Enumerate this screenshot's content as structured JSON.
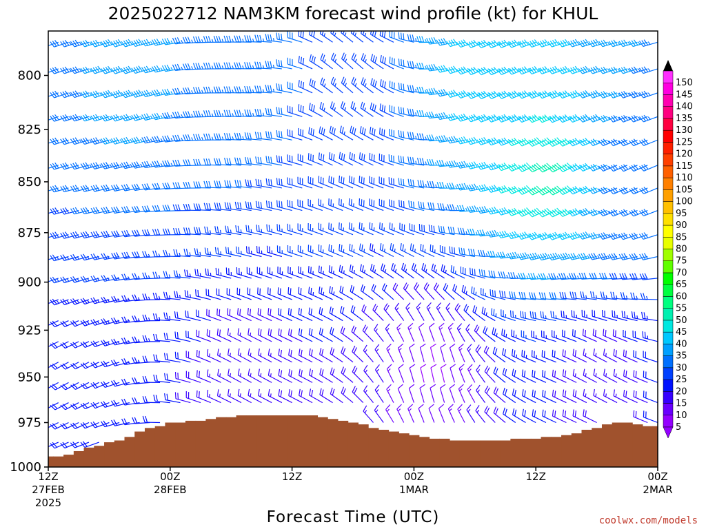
{
  "chart_data": {
    "type": "wind_barb_profile",
    "title": "2025022712 NAM3KM forecast wind profile (kt) for KHUL",
    "xlabel": "Forecast Time (UTC)",
    "ylabel": "",
    "credit": "coolwx.com/models",
    "y_axis": {
      "ticks": [
        800,
        825,
        850,
        875,
        900,
        925,
        950,
        975,
        1000
      ],
      "range_hPa": [
        780,
        1000
      ],
      "inverted": true
    },
    "x_axis": {
      "range_hours": [
        0,
        60
      ],
      "ticks": [
        {
          "hour": 0,
          "line1": "12Z",
          "line2": "27FEB",
          "line3": "2025"
        },
        {
          "hour": 12,
          "line1": "00Z",
          "line2": "28FEB",
          "line3": ""
        },
        {
          "hour": 24,
          "line1": "12Z",
          "line2": "",
          "line3": ""
        },
        {
          "hour": 36,
          "line1": "00Z",
          "line2": "1MAR",
          "line3": ""
        },
        {
          "hour": 48,
          "line1": "12Z",
          "line2": "",
          "line3": ""
        },
        {
          "hour": 60,
          "line1": "00Z",
          "line2": "2MAR",
          "line3": ""
        }
      ]
    },
    "colorbar": {
      "values": [
        5,
        10,
        15,
        20,
        25,
        30,
        35,
        40,
        45,
        50,
        55,
        60,
        65,
        70,
        75,
        80,
        85,
        90,
        95,
        100,
        105,
        110,
        115,
        120,
        125,
        130,
        135,
        140,
        145,
        150
      ],
      "colors": [
        "#9400ff",
        "#6a00ff",
        "#3700ff",
        "#0011ff",
        "#0040ff",
        "#0070ff",
        "#00a0ff",
        "#00c8ff",
        "#00e8e0",
        "#00f0b0",
        "#00ff80",
        "#00ff40",
        "#00ff00",
        "#60ff00",
        "#a0ff00",
        "#e8ff00",
        "#ffff00",
        "#ffe000",
        "#ffc000",
        "#ffa000",
        "#ff8000",
        "#ff6000",
        "#ff4000",
        "#ff2000",
        "#ff0000",
        "#ff0040",
        "#ff0080",
        "#ff00b0",
        "#ff00e0",
        "#ff30ff"
      ]
    },
    "surface_pressure": {
      "hours": [
        0,
        1,
        2,
        3,
        4,
        5,
        6,
        7,
        8,
        9,
        10,
        11,
        12,
        13,
        14,
        15,
        16,
        17,
        18,
        19,
        20,
        21,
        22,
        23,
        24,
        25,
        26,
        27,
        28,
        29,
        30,
        31,
        32,
        33,
        34,
        35,
        36,
        37,
        38,
        39,
        40,
        41,
        42,
        43,
        44,
        45,
        46,
        47,
        48,
        49,
        50,
        51,
        52,
        53,
        54,
        55,
        56,
        57,
        58,
        59,
        60
      ],
      "hPa": [
        994,
        994,
        993,
        991,
        989,
        988,
        986,
        985,
        983,
        980,
        978,
        977,
        975,
        975,
        974,
        974,
        973,
        972,
        972,
        971,
        971,
        971,
        971,
        971,
        971,
        971,
        971,
        972,
        973,
        974,
        975,
        976,
        978,
        979,
        980,
        981,
        982,
        983,
        984,
        984,
        985,
        985,
        985,
        985,
        985,
        985,
        984,
        984,
        984,
        983,
        983,
        982,
        981,
        979,
        978,
        976,
        975,
        975,
        976,
        977,
        977
      ]
    },
    "wind_summary": {
      "levels_hPa": [
        785,
        797,
        808,
        819,
        830,
        842,
        853,
        864,
        876,
        887,
        898,
        909,
        920,
        931,
        942,
        953,
        964,
        975,
        986,
        997
      ],
      "hour_step": 1,
      "description_points": [
        {
          "hour": 0,
          "hPa": 800,
          "dir_deg": 250,
          "speed_kt": 30
        },
        {
          "hour": 8,
          "hPa": 800,
          "dir_deg": 250,
          "speed_kt": 40
        },
        {
          "hour": 20,
          "hPa": 800,
          "dir_deg": 270,
          "speed_kt": 35
        },
        {
          "hour": 30,
          "hPa": 800,
          "dir_deg": 315,
          "speed_kt": 25
        },
        {
          "hour": 44,
          "hPa": 800,
          "dir_deg": 245,
          "speed_kt": 45
        },
        {
          "hour": 50,
          "hPa": 850,
          "dir_deg": 240,
          "speed_kt": 55
        },
        {
          "hour": 58,
          "hPa": 850,
          "dir_deg": 245,
          "speed_kt": 30
        },
        {
          "hour": 2,
          "hPa": 950,
          "dir_deg": 240,
          "speed_kt": 20
        },
        {
          "hour": 20,
          "hPa": 950,
          "dir_deg": 300,
          "speed_kt": 15
        },
        {
          "hour": 38,
          "hPa": 950,
          "dir_deg": 350,
          "speed_kt": 8
        },
        {
          "hour": 55,
          "hPa": 950,
          "dir_deg": 300,
          "speed_kt": 15
        }
      ]
    }
  }
}
